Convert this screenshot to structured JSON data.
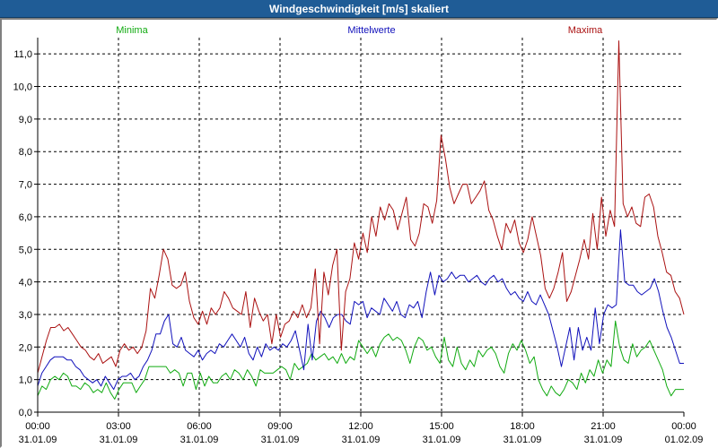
{
  "window": {
    "title": "Windgeschwindigkeit [m/s] skaliert"
  },
  "chart_data": {
    "type": "line",
    "title": "Windgeschwindigkeit [m/s] skaliert",
    "xlabel": "",
    "ylabel": "",
    "ylim": [
      0,
      11.5
    ],
    "xlim": [
      0,
      24
    ],
    "grid": true,
    "y_ticks": [
      "0,0",
      "1,0",
      "2,0",
      "3,0",
      "4,0",
      "5,0",
      "6,0",
      "7,0",
      "8,0",
      "9,0",
      "10,0",
      "11,0"
    ],
    "x_ticks": [
      {
        "time": "00:00",
        "date": "31.01.09"
      },
      {
        "time": "03:00",
        "date": "31.01.09"
      },
      {
        "time": "06:00",
        "date": "31.01.09"
      },
      {
        "time": "09:00",
        "date": "31.01.09"
      },
      {
        "time": "12:00",
        "date": "31.01.09"
      },
      {
        "time": "15:00",
        "date": "31.01.09"
      },
      {
        "time": "18:00",
        "date": "31.01.09"
      },
      {
        "time": "21:00",
        "date": "31.01.09"
      },
      {
        "time": "00:00",
        "date": "01.02.09"
      }
    ],
    "colors": {
      "grid": "#000000",
      "axis": "#000000",
      "background": "#ffffff"
    },
    "series": [
      {
        "name": "Minima",
        "color": "#11aa11",
        "values": [
          0.5,
          0.8,
          0.7,
          1.0,
          1.1,
          1.0,
          1.2,
          1.1,
          0.8,
          0.8,
          0.7,
          0.9,
          0.8,
          0.6,
          0.7,
          0.6,
          0.9,
          0.6,
          0.4,
          0.7,
          0.9,
          0.9,
          0.9,
          0.6,
          0.8,
          1.0,
          1.4,
          1.4,
          1.4,
          1.4,
          1.4,
          1.2,
          1.3,
          1.2,
          0.8,
          1.2,
          1.2,
          0.7,
          1.2,
          0.8,
          1.1,
          0.9,
          0.9,
          1.1,
          1.2,
          1.0,
          1.3,
          1.2,
          1.0,
          1.3,
          1.1,
          0.8,
          1.3,
          1.2,
          1.2,
          1.2,
          1.3,
          1.4,
          1.3,
          1.0,
          1.5,
          1.3,
          1.4,
          1.5,
          1.8,
          1.6,
          1.7,
          1.8,
          1.6,
          1.7,
          1.5,
          1.8,
          1.5,
          1.7,
          1.6,
          2.2,
          2.0,
          1.8,
          2.0,
          1.7,
          2.1,
          2.3,
          2.4,
          2.2,
          2.3,
          2.2,
          1.9,
          1.5,
          2.0,
          2.3,
          2.2,
          1.9,
          2.0,
          1.7,
          1.5,
          2.3,
          1.6,
          1.4,
          2.0,
          1.5,
          1.3,
          1.6,
          1.4,
          1.9,
          1.7,
          1.9,
          2.0,
          1.8,
          1.4,
          1.2,
          1.8,
          2.1,
          1.9,
          2.2,
          1.9,
          1.5,
          1.7,
          1.0,
          0.7,
          0.5,
          0.8,
          0.6,
          0.5,
          0.7,
          1.0,
          0.9,
          0.7,
          1.2,
          0.9,
          1.3,
          1.1,
          1.6,
          1.2,
          1.6,
          1.4,
          2.8,
          2.0,
          1.6,
          1.5,
          2.1,
          1.7,
          1.9,
          2.0,
          2.2,
          1.9,
          1.6,
          1.3,
          0.8,
          0.5,
          0.7,
          0.7,
          0.7
        ]
      },
      {
        "name": "Mittelwerte",
        "color": "#1111bb",
        "values": [
          0.8,
          1.2,
          1.4,
          1.6,
          1.7,
          1.7,
          1.7,
          1.6,
          1.6,
          1.4,
          1.3,
          1.1,
          1.0,
          0.9,
          1.0,
          0.8,
          1.1,
          0.9,
          0.7,
          1.0,
          1.1,
          1.1,
          1.2,
          1.0,
          1.1,
          1.4,
          1.6,
          1.9,
          2.4,
          2.4,
          2.8,
          3.0,
          2.1,
          2.0,
          2.3,
          1.9,
          1.8,
          1.7,
          1.9,
          1.6,
          1.8,
          1.9,
          1.8,
          2.1,
          2.0,
          2.2,
          2.4,
          2.2,
          2.0,
          2.3,
          1.8,
          1.6,
          2.0,
          1.7,
          2.1,
          1.9,
          2.0,
          1.9,
          2.1,
          2.0,
          2.2,
          2.5,
          1.9,
          1.3,
          2.7,
          1.6,
          2.8,
          3.1,
          2.9,
          2.6,
          2.9,
          3.0,
          3.0,
          2.8,
          2.7,
          3.4,
          3.3,
          3.4,
          2.9,
          3.2,
          3.1,
          3.0,
          3.5,
          3.3,
          3.1,
          3.4,
          3.0,
          2.9,
          3.3,
          3.2,
          3.4,
          2.9,
          3.7,
          4.3,
          3.6,
          4.2,
          4.0,
          4.1,
          4.3,
          4.1,
          4.2,
          4.2,
          4.0,
          4.1,
          4.2,
          4.0,
          3.9,
          4.1,
          4.2,
          4.0,
          4.1,
          3.8,
          3.6,
          3.7,
          3.5,
          3.4,
          3.7,
          3.4,
          3.3,
          3.6,
          3.3,
          3.0,
          2.5,
          2.0,
          1.4,
          2.0,
          2.6,
          1.6,
          2.6,
          1.9,
          2.3,
          1.9,
          3.2,
          2.1,
          3.0,
          3.3,
          3.2,
          3.3,
          5.6,
          4.0,
          3.9,
          3.9,
          3.7,
          3.6,
          3.7,
          3.8,
          4.1,
          3.7,
          3.1,
          2.6,
          2.3,
          1.9,
          1.5,
          1.5
        ]
      },
      {
        "name": "Maxima",
        "color": "#aa1111",
        "values": [
          1.2,
          1.7,
          2.2,
          2.6,
          2.6,
          2.7,
          2.5,
          2.6,
          2.4,
          2.2,
          2.0,
          1.9,
          1.7,
          1.6,
          1.8,
          1.5,
          1.6,
          1.7,
          1.4,
          1.9,
          2.1,
          1.9,
          2.0,
          1.8,
          2.0,
          2.5,
          3.8,
          3.5,
          4.2,
          5.0,
          4.7,
          3.9,
          3.8,
          3.9,
          4.3,
          3.4,
          2.9,
          2.7,
          3.1,
          2.7,
          3.2,
          3.0,
          3.2,
          3.7,
          3.5,
          3.2,
          3.1,
          3.0,
          3.7,
          2.6,
          3.5,
          3.1,
          2.8,
          3.0,
          2.1,
          3.0,
          2.3,
          2.7,
          2.8,
          3.1,
          2.9,
          3.3,
          2.9,
          3.2,
          4.4,
          2.1,
          4.3,
          3.6,
          4.5,
          5.0,
          1.9,
          3.7,
          4.1,
          5.2,
          4.7,
          5.5,
          4.9,
          6.0,
          5.4,
          6.3,
          5.9,
          6.4,
          6.2,
          5.6,
          6.1,
          6.6,
          5.3,
          5.1,
          5.5,
          6.4,
          6.3,
          5.8,
          6.5,
          8.5,
          7.8,
          6.9,
          6.4,
          6.7,
          7.0,
          7.0,
          6.4,
          6.6,
          6.8,
          7.1,
          6.2,
          5.9,
          5.4,
          5.0,
          5.8,
          5.5,
          5.9,
          5.2,
          4.9,
          5.3,
          6.0,
          5.4,
          4.8,
          3.8,
          3.5,
          3.8,
          4.3,
          4.9,
          3.4,
          3.7,
          4.2,
          4.7,
          5.3,
          4.7,
          6.1,
          5.0,
          6.6,
          5.4,
          6.2,
          5.7,
          11.4,
          6.4,
          6.0,
          6.3,
          5.8,
          5.7,
          6.6,
          6.7,
          6.3,
          5.4,
          4.9,
          4.3,
          4.2,
          3.7,
          3.5,
          3.0
        ]
      }
    ]
  }
}
